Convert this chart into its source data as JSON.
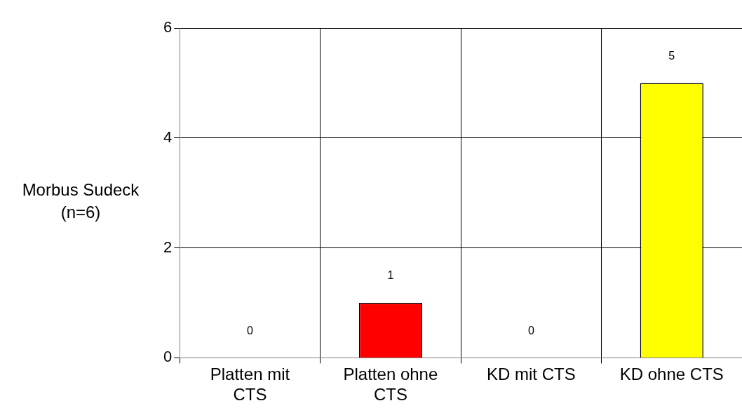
{
  "chart_data": {
    "type": "bar",
    "ylabel": "Morbus Sudeck (n=6)",
    "categories": [
      "Platten mit CTS",
      "Platten ohne CTS",
      "KD mit CTS",
      "KD ohne CTS"
    ],
    "values": [
      0,
      1,
      0,
      5
    ],
    "colors": [
      "#0a0ab4",
      "#ff0000",
      "#00c0c0",
      "#ffff00"
    ],
    "ylim": [
      0,
      6
    ],
    "yticks": [
      0,
      2,
      4,
      6
    ],
    "grid": true,
    "data_labels": true,
    "legend": false
  }
}
